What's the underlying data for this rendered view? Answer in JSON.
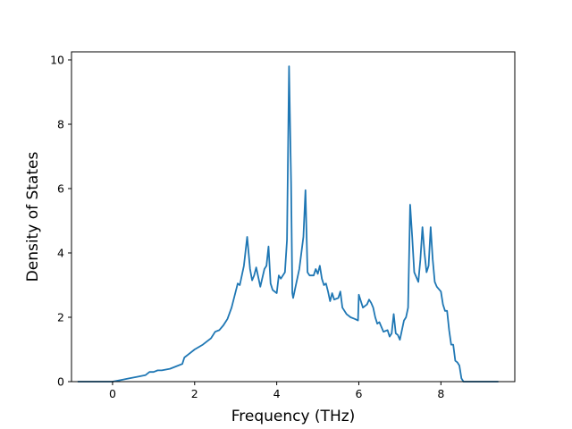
{
  "chart_data": {
    "type": "line",
    "title": "",
    "xlabel": "Frequency (THz)",
    "ylabel": "Density of States",
    "xlim": [
      -1.0,
      9.8
    ],
    "ylim": [
      0,
      10.25
    ],
    "xticks": [
      0,
      2,
      4,
      6,
      8
    ],
    "yticks": [
      0,
      2,
      4,
      6,
      8,
      10
    ],
    "grid": false,
    "legend": "none",
    "series": [
      {
        "name": "",
        "color": "#1f77b4",
        "x": [
          -0.85,
          -0.5,
          -0.2,
          0.0,
          0.2,
          0.4,
          0.6,
          0.8,
          0.9,
          1.0,
          1.1,
          1.2,
          1.4,
          1.6,
          1.7,
          1.75,
          1.85,
          2.0,
          2.2,
          2.4,
          2.5,
          2.6,
          2.7,
          2.8,
          2.9,
          3.0,
          3.05,
          3.1,
          3.2,
          3.28,
          3.35,
          3.4,
          3.45,
          3.5,
          3.6,
          3.7,
          3.75,
          3.8,
          3.85,
          3.9,
          4.0,
          4.05,
          4.1,
          4.2,
          4.25,
          4.3,
          4.35,
          4.38,
          4.4,
          4.45,
          4.55,
          4.65,
          4.7,
          4.75,
          4.8,
          4.9,
          4.95,
          5.0,
          5.05,
          5.1,
          5.15,
          5.2,
          5.25,
          5.3,
          5.35,
          5.4,
          5.5,
          5.55,
          5.6,
          5.7,
          5.8,
          5.9,
          5.98,
          6.0,
          6.05,
          6.1,
          6.2,
          6.25,
          6.3,
          6.35,
          6.4,
          6.45,
          6.5,
          6.6,
          6.7,
          6.75,
          6.8,
          6.85,
          6.9,
          6.95,
          7.0,
          7.05,
          7.1,
          7.15,
          7.2,
          7.25,
          7.3,
          7.35,
          7.4,
          7.45,
          7.5,
          7.55,
          7.6,
          7.65,
          7.7,
          7.75,
          7.8,
          7.85,
          7.9,
          8.0,
          8.05,
          8.1,
          8.15,
          8.2,
          8.25,
          8.3,
          8.35,
          8.4,
          8.45,
          8.5,
          8.55,
          8.6,
          9.0,
          9.4
        ],
        "y": [
          0.0,
          0.0,
          0.0,
          0.0,
          0.05,
          0.1,
          0.15,
          0.2,
          0.3,
          0.3,
          0.35,
          0.35,
          0.4,
          0.5,
          0.55,
          0.75,
          0.85,
          1.0,
          1.15,
          1.35,
          1.55,
          1.6,
          1.75,
          1.95,
          2.3,
          2.8,
          3.05,
          3.0,
          3.6,
          4.5,
          3.5,
          3.15,
          3.3,
          3.55,
          2.95,
          3.5,
          3.6,
          4.2,
          3.05,
          2.85,
          2.75,
          3.3,
          3.2,
          3.4,
          4.4,
          9.8,
          6.2,
          2.75,
          2.6,
          2.9,
          3.5,
          4.5,
          5.95,
          3.4,
          3.3,
          3.3,
          3.5,
          3.35,
          3.6,
          3.2,
          3.0,
          3.05,
          2.8,
          2.5,
          2.75,
          2.55,
          2.6,
          2.8,
          2.3,
          2.1,
          2.0,
          1.95,
          1.9,
          2.7,
          2.5,
          2.3,
          2.4,
          2.55,
          2.45,
          2.3,
          2.0,
          1.8,
          1.85,
          1.55,
          1.6,
          1.4,
          1.5,
          2.1,
          1.5,
          1.45,
          1.3,
          1.6,
          1.9,
          2.0,
          2.3,
          5.5,
          4.5,
          3.4,
          3.25,
          3.1,
          3.8,
          4.8,
          4.0,
          3.4,
          3.6,
          4.8,
          3.8,
          3.1,
          2.95,
          2.8,
          2.4,
          2.2,
          2.2,
          1.6,
          1.15,
          1.15,
          0.65,
          0.6,
          0.5,
          0.1,
          0.0,
          0.0,
          0.0,
          0.0
        ]
      }
    ]
  }
}
